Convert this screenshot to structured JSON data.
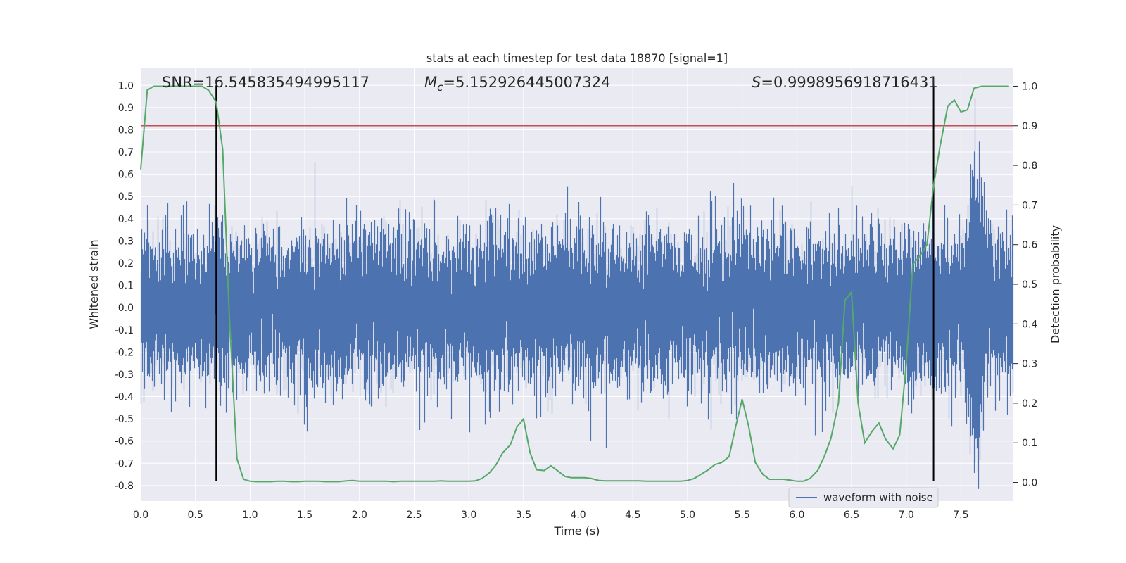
{
  "chart_data": {
    "type": "line",
    "title": "stats at each timestep for test data 18870 [signal=1]",
    "xlabel": "Time (s)",
    "ylabel": "Whitened strain",
    "ylabel_right": "Detection probability",
    "xlim": [
      0.0,
      7.98
    ],
    "ylim": [
      -0.87,
      1.08
    ],
    "ylim_right": [
      -0.047,
      1.047
    ],
    "xticks": [
      "0.0",
      "0.5",
      "1.0",
      "1.5",
      "2.0",
      "2.5",
      "3.0",
      "3.5",
      "4.0",
      "4.5",
      "5.0",
      "5.5",
      "6.0",
      "6.5",
      "7.0",
      "7.5"
    ],
    "yticks": [
      "1.0",
      "0.9",
      "0.8",
      "0.7",
      "0.6",
      "0.5",
      "0.4",
      "0.3",
      "0.2",
      "0.1",
      "0.0",
      "-0.1",
      "-0.2",
      "-0.3",
      "-0.4",
      "-0.5",
      "-0.6",
      "-0.7",
      "-0.8"
    ],
    "yticks_right": [
      "1.0",
      "0.9",
      "0.8",
      "0.7",
      "0.6",
      "0.5",
      "0.4",
      "0.3",
      "0.2",
      "0.1",
      "0.0"
    ],
    "grid": true,
    "legend_placement": "lower-right",
    "annotations": {
      "snr": "SNR=16.545835494995117",
      "mc_symbol": "M",
      "mc_sub": "c",
      "mc_value": "=5.152926445007324",
      "s_symbol": "S",
      "s_value": "=0.9998956918716431"
    },
    "threshold_right": 0.9,
    "vlines_x": [
      0.69,
      7.25
    ],
    "series": [
      {
        "name": "waveform with noise",
        "color": "#4c72b0",
        "kind": "noise",
        "sample_rate": 2048,
        "duration": 7.98,
        "seed": 18870,
        "approx_std": 0.155,
        "chirp_peak_time": 7.64,
        "chirp_peak_amplitude": 1.0
      },
      {
        "name": "detection probability",
        "color": "#55a868",
        "x": [
          0.0,
          0.06,
          0.12,
          0.19,
          0.25,
          0.31,
          0.38,
          0.44,
          0.5,
          0.56,
          0.62,
          0.69,
          0.75,
          0.81,
          0.88,
          0.94,
          1.0,
          1.06,
          1.12,
          1.19,
          1.25,
          1.31,
          1.38,
          1.44,
          1.5,
          1.56,
          1.62,
          1.69,
          1.75,
          1.81,
          1.88,
          1.94,
          2.0,
          2.06,
          2.12,
          2.19,
          2.25,
          2.31,
          2.38,
          2.44,
          2.5,
          2.56,
          2.62,
          2.69,
          2.75,
          2.81,
          2.88,
          2.94,
          3.0,
          3.06,
          3.12,
          3.19,
          3.25,
          3.31,
          3.38,
          3.44,
          3.5,
          3.56,
          3.62,
          3.69,
          3.75,
          3.81,
          3.88,
          3.94,
          4.0,
          4.06,
          4.12,
          4.19,
          4.25,
          4.31,
          4.38,
          4.44,
          4.5,
          4.56,
          4.62,
          4.69,
          4.75,
          4.81,
          4.88,
          4.94,
          5.0,
          5.06,
          5.12,
          5.19,
          5.25,
          5.31,
          5.38,
          5.44,
          5.5,
          5.56,
          5.62,
          5.69,
          5.75,
          5.81,
          5.88,
          5.94,
          6.0,
          6.06,
          6.12,
          6.19,
          6.25,
          6.31,
          6.38,
          6.44,
          6.5,
          6.56,
          6.62,
          6.69,
          6.75,
          6.81,
          6.88,
          6.94,
          7.0,
          7.06,
          7.12,
          7.19,
          7.25,
          7.31,
          7.38,
          7.44,
          7.5,
          7.56,
          7.62,
          7.69,
          7.75,
          7.81,
          7.88,
          7.94
        ],
        "y": [
          0.79,
          0.99,
          1.0,
          1.0,
          1.0,
          1.0,
          1.0,
          1.0,
          1.0,
          1.0,
          0.99,
          0.96,
          0.84,
          0.42,
          0.06,
          0.008,
          0.003,
          0.002,
          0.002,
          0.002,
          0.003,
          0.003,
          0.002,
          0.002,
          0.003,
          0.003,
          0.003,
          0.002,
          0.002,
          0.002,
          0.004,
          0.005,
          0.003,
          0.003,
          0.003,
          0.003,
          0.003,
          0.002,
          0.003,
          0.003,
          0.003,
          0.003,
          0.003,
          0.003,
          0.004,
          0.003,
          0.003,
          0.003,
          0.003,
          0.004,
          0.01,
          0.025,
          0.045,
          0.075,
          0.095,
          0.14,
          0.16,
          0.075,
          0.032,
          0.03,
          0.042,
          0.03,
          0.015,
          0.012,
          0.012,
          0.012,
          0.01,
          0.005,
          0.004,
          0.004,
          0.004,
          0.004,
          0.004,
          0.004,
          0.003,
          0.003,
          0.003,
          0.003,
          0.003,
          0.003,
          0.005,
          0.01,
          0.02,
          0.032,
          0.045,
          0.05,
          0.065,
          0.14,
          0.21,
          0.14,
          0.05,
          0.02,
          0.008,
          0.008,
          0.008,
          0.006,
          0.003,
          0.003,
          0.01,
          0.03,
          0.065,
          0.11,
          0.2,
          0.46,
          0.48,
          0.2,
          0.1,
          0.13,
          0.15,
          0.11,
          0.085,
          0.12,
          0.3,
          0.55,
          0.57,
          0.6,
          0.75,
          0.85,
          0.95,
          0.965,
          0.935,
          0.94,
          0.995,
          1.0,
          1.0,
          1.0,
          1.0,
          1.0
        ]
      }
    ]
  }
}
